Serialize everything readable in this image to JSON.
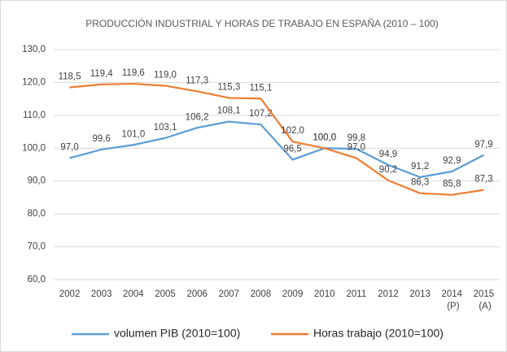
{
  "chart_data": {
    "type": "line",
    "title": "PRODUCCIÓN INDUSTRIAL Y HORAS DE TRABAJO EN ESPAÑA (2010 – 100)",
    "categories": [
      "2002",
      "2003",
      "2004",
      "2005",
      "2006",
      "2007",
      "2008",
      "2009",
      "2010",
      "2011",
      "2012",
      "2013",
      "2014 (P)",
      "2015 (A)"
    ],
    "series": [
      {
        "name": "volumen PIB (2010=100)",
        "color": "#5b9bd5",
        "values": [
          97.0,
          99.6,
          101.0,
          103.1,
          106.2,
          108.1,
          107.2,
          96.5,
          100.0,
          99.8,
          94.9,
          91.2,
          92.9,
          97.9
        ],
        "value_labels": [
          "97,0",
          "99,6",
          "101,0",
          "103,1",
          "106,2",
          "108,1",
          "107,2",
          "96,5",
          "100,0",
          "99,8",
          "94,9",
          "91,2",
          "92,9",
          "97,9"
        ]
      },
      {
        "name": "Horas trabajo (2010=100)",
        "color": "#ed7d31",
        "values": [
          118.5,
          119.4,
          119.6,
          119.0,
          117.3,
          115.3,
          115.1,
          102.0,
          100.0,
          97.0,
          90.2,
          86.3,
          85.8,
          87.3
        ],
        "value_labels": [
          "118,5",
          "119,4",
          "119,6",
          "119,0",
          "117,3",
          "115,3",
          "115,1",
          "102,0",
          "100,0",
          "97,0",
          "90,2",
          "86,3",
          "85,8",
          "87,3"
        ]
      }
    ],
    "ylim": [
      60,
      130
    ],
    "yticks": [
      {
        "value": 60,
        "label": "60,0"
      },
      {
        "value": 70,
        "label": "70,0"
      },
      {
        "value": 80,
        "label": "80,0"
      },
      {
        "value": 90,
        "label": "90,0"
      },
      {
        "value": 100,
        "label": "100,0"
      },
      {
        "value": 110,
        "label": "110,0"
      },
      {
        "value": 120,
        "label": "120,0"
      },
      {
        "value": 130,
        "label": "130,0"
      }
    ],
    "grid": true,
    "legend": "bottom"
  }
}
